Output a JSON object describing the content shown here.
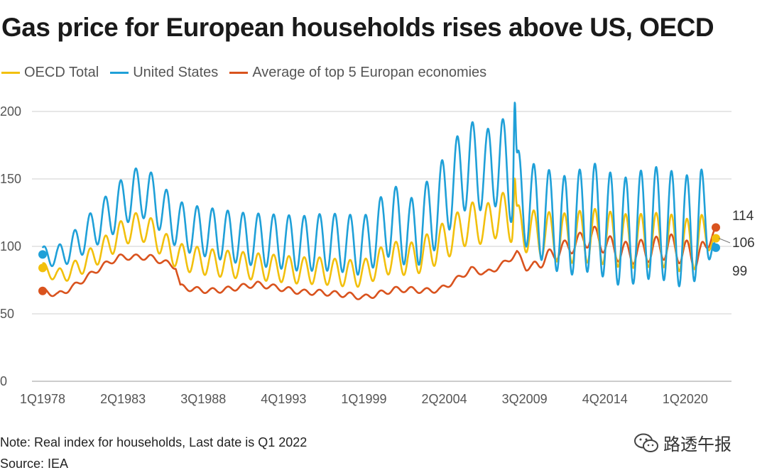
{
  "title": "Gas price for European households rises above US, OECD",
  "note": "Note: Real index for households, Last date is Q1 2022",
  "source": "Source: IEA",
  "watermark": "路透午报",
  "chart_data": {
    "type": "line",
    "title": "Gas price for European households rises above US, OECD",
    "xlabel": "",
    "ylabel": "",
    "ylim": [
      0,
      200
    ],
    "yticks": [
      0,
      50,
      100,
      150,
      200
    ],
    "xticks": [
      "1Q1978",
      "2Q1983",
      "3Q1988",
      "4Q1993",
      "1Q1999",
      "2Q2004",
      "3Q2009",
      "4Q2014",
      "1Q2020"
    ],
    "x_start": "1Q1978",
    "x_end": "1Q2022",
    "grid": "horizontal",
    "legend_position": "top-left",
    "series": [
      {
        "name": "OECD Total",
        "color": "#f2c00d",
        "end_label": "106",
        "anchors": [
          [
            1978.0,
            84
          ],
          [
            1979.0,
            78
          ],
          [
            1980.0,
            82
          ],
          [
            1981.0,
            90
          ],
          [
            1982.0,
            98
          ],
          [
            1983.0,
            108
          ],
          [
            1984.0,
            115
          ],
          [
            1985.0,
            112
          ],
          [
            1986.0,
            100
          ],
          [
            1987.0,
            92
          ],
          [
            1988.0,
            90
          ],
          [
            1989.0,
            88
          ],
          [
            1990.0,
            87
          ],
          [
            1991.0,
            86
          ],
          [
            1992.0,
            85
          ],
          [
            1993.0,
            84
          ],
          [
            1994.0,
            83
          ],
          [
            1995.0,
            82
          ],
          [
            1996.0,
            82
          ],
          [
            1997.0,
            81
          ],
          [
            1998.0,
            80
          ],
          [
            1999.0,
            80
          ],
          [
            2000.0,
            88
          ],
          [
            2001.0,
            92
          ],
          [
            2002.0,
            90
          ],
          [
            2003.0,
            95
          ],
          [
            2004.0,
            102
          ],
          [
            2005.0,
            110
          ],
          [
            2006.0,
            118
          ],
          [
            2007.0,
            116
          ],
          [
            2008.0,
            125
          ],
          [
            2009.0,
            115
          ],
          [
            2010.0,
            110
          ],
          [
            2011.0,
            108
          ],
          [
            2012.0,
            106
          ],
          [
            2013.0,
            107
          ],
          [
            2014.0,
            108
          ],
          [
            2015.0,
            106
          ],
          [
            2016.0,
            104
          ],
          [
            2017.0,
            104
          ],
          [
            2018.0,
            105
          ],
          [
            2019.0,
            104
          ],
          [
            2020.0,
            100
          ],
          [
            2021.0,
            105
          ],
          [
            2022.0,
            106
          ]
        ],
        "amplitude": [
          [
            1978.0,
            4
          ],
          [
            1983.0,
            10
          ],
          [
            1988.0,
            10
          ],
          [
            1999.0,
            10
          ],
          [
            2004.0,
            14
          ],
          [
            2009.0,
            16
          ],
          [
            2014.0,
            20
          ],
          [
            2021.0,
            20
          ],
          [
            2022.0,
            0
          ]
        ],
        "peaks": [
          [
            2008.85,
            150
          ]
        ]
      },
      {
        "name": "United States",
        "color": "#1fa0d8",
        "end_label": "99",
        "anchors": [
          [
            1978.0,
            94
          ],
          [
            1979.0,
            92
          ],
          [
            1980.0,
            100
          ],
          [
            1981.0,
            110
          ],
          [
            1982.0,
            120
          ],
          [
            1983.0,
            130
          ],
          [
            1984.0,
            140
          ],
          [
            1985.0,
            138
          ],
          [
            1986.0,
            125
          ],
          [
            1987.0,
            115
          ],
          [
            1988.0,
            112
          ],
          [
            1989.0,
            110
          ],
          [
            1990.0,
            108
          ],
          [
            1991.0,
            106
          ],
          [
            1992.0,
            105
          ],
          [
            1993.0,
            104
          ],
          [
            1994.0,
            103
          ],
          [
            1995.0,
            102
          ],
          [
            1996.0,
            103
          ],
          [
            1997.0,
            103
          ],
          [
            1998.0,
            102
          ],
          [
            1999.0,
            100
          ],
          [
            2000.0,
            112
          ],
          [
            2001.0,
            120
          ],
          [
            2002.0,
            108
          ],
          [
            2003.0,
            118
          ],
          [
            2004.0,
            132
          ],
          [
            2005.0,
            150
          ],
          [
            2006.0,
            162
          ],
          [
            2007.0,
            155
          ],
          [
            2008.0,
            165
          ],
          [
            2009.0,
            140
          ],
          [
            2010.0,
            128
          ],
          [
            2011.0,
            122
          ],
          [
            2012.0,
            115
          ],
          [
            2013.0,
            118
          ],
          [
            2014.0,
            122
          ],
          [
            2015.0,
            115
          ],
          [
            2016.0,
            110
          ],
          [
            2017.0,
            115
          ],
          [
            2018.0,
            118
          ],
          [
            2019.0,
            115
          ],
          [
            2020.0,
            110
          ],
          [
            2021.0,
            120
          ],
          [
            2022.0,
            99
          ]
        ],
        "amplitude": [
          [
            1978.0,
            6
          ],
          [
            1983.0,
            18
          ],
          [
            1988.0,
            18
          ],
          [
            1999.0,
            22
          ],
          [
            2004.0,
            30
          ],
          [
            2009.0,
            32
          ],
          [
            2014.0,
            40
          ],
          [
            2021.0,
            42
          ],
          [
            2022.0,
            0
          ]
        ],
        "peaks": [
          [
            2008.85,
            206
          ]
        ]
      },
      {
        "name": "Average of top 5 Europan economies",
        "color": "#d9531e",
        "end_label": "114",
        "anchors": [
          [
            1978.0,
            67
          ],
          [
            1979.0,
            64
          ],
          [
            1980.0,
            70
          ],
          [
            1981.0,
            78
          ],
          [
            1982.0,
            86
          ],
          [
            1983.0,
            92
          ],
          [
            1984.0,
            92
          ],
          [
            1985.0,
            92
          ],
          [
            1986.0,
            88
          ],
          [
            1986.7,
            85
          ],
          [
            1987.0,
            70
          ],
          [
            1988.0,
            68
          ],
          [
            1989.0,
            67
          ],
          [
            1990.0,
            68
          ],
          [
            1991.0,
            70
          ],
          [
            1992.0,
            72
          ],
          [
            1993.0,
            70
          ],
          [
            1994.0,
            68
          ],
          [
            1995.0,
            66
          ],
          [
            1996.0,
            66
          ],
          [
            1997.0,
            65
          ],
          [
            1998.0,
            64
          ],
          [
            1999.0,
            62
          ],
          [
            2000.0,
            65
          ],
          [
            2001.0,
            68
          ],
          [
            2002.0,
            68
          ],
          [
            2003.0,
            67
          ],
          [
            2004.0,
            68
          ],
          [
            2005.0,
            75
          ],
          [
            2006.0,
            83
          ],
          [
            2007.0,
            80
          ],
          [
            2008.0,
            86
          ],
          [
            2009.0,
            95
          ],
          [
            2009.6,
            85
          ],
          [
            2010.0,
            84
          ],
          [
            2011.0,
            92
          ],
          [
            2012.0,
            98
          ],
          [
            2013.0,
            103
          ],
          [
            2014.0,
            108
          ],
          [
            2015.0,
            100
          ],
          [
            2016.0,
            95
          ],
          [
            2017.0,
            96
          ],
          [
            2018.0,
            98
          ],
          [
            2019.0,
            100
          ],
          [
            2020.0,
            95
          ],
          [
            2021.0,
            92
          ],
          [
            2022.0,
            114
          ]
        ],
        "amplitude": [
          [
            1978.0,
            2
          ],
          [
            1986.0,
            2
          ],
          [
            2009.0,
            2
          ],
          [
            2011.0,
            5
          ],
          [
            2015.0,
            8
          ],
          [
            2021.0,
            10
          ],
          [
            2022.0,
            0
          ]
        ],
        "peaks": []
      }
    ]
  }
}
